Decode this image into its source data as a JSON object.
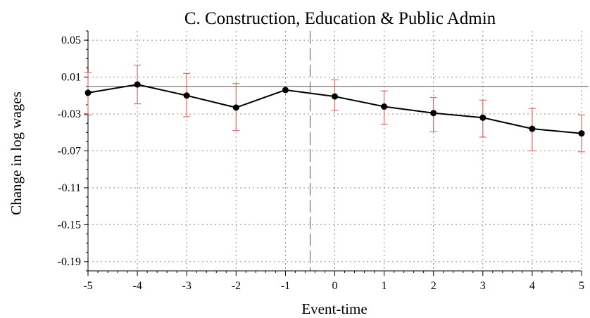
{
  "chart_data": {
    "type": "line",
    "title": "C. Construction, Education & Public Admin",
    "xlabel": "Event-time",
    "ylabel": "Change in log wages",
    "x": [
      -5,
      -4,
      -3,
      -2,
      -1,
      0,
      1,
      2,
      3,
      4,
      5
    ],
    "x_ticks": [
      "-5",
      "-4",
      "-3",
      "-2",
      "-1",
      "0",
      "1",
      "2",
      "3",
      "4",
      "5"
    ],
    "y_ticks": [
      "0.05",
      "0.01",
      "-0.03",
      "-0.07",
      "-0.11",
      "-0.15",
      "-0.19"
    ],
    "y_tick_values": [
      0.05,
      0.01,
      -0.03,
      -0.07,
      -0.11,
      -0.15,
      -0.19
    ],
    "xlim": [
      -5,
      5
    ],
    "ylim": [
      -0.2,
      0.06
    ],
    "grid": true,
    "reference_line_y": 0,
    "event_line_x": -0.5,
    "series": [
      {
        "values": [
          -0.007,
          0.002,
          -0.01,
          -0.023,
          -0.004,
          -0.011,
          -0.022,
          -0.029,
          -0.034,
          -0.046,
          -0.051
        ],
        "ci_low": [
          -0.031,
          -0.019,
          -0.033,
          -0.048,
          -0.004,
          -0.026,
          -0.041,
          -0.049,
          -0.055,
          -0.07,
          -0.071
        ],
        "ci_high": [
          0.015,
          0.023,
          0.014,
          0.003,
          -0.004,
          0.007,
          -0.005,
          -0.012,
          -0.015,
          -0.024,
          -0.031
        ]
      }
    ],
    "colors": {
      "line": "#000000",
      "ci": "#e06a6a",
      "grid": "#8a8a8a"
    }
  }
}
